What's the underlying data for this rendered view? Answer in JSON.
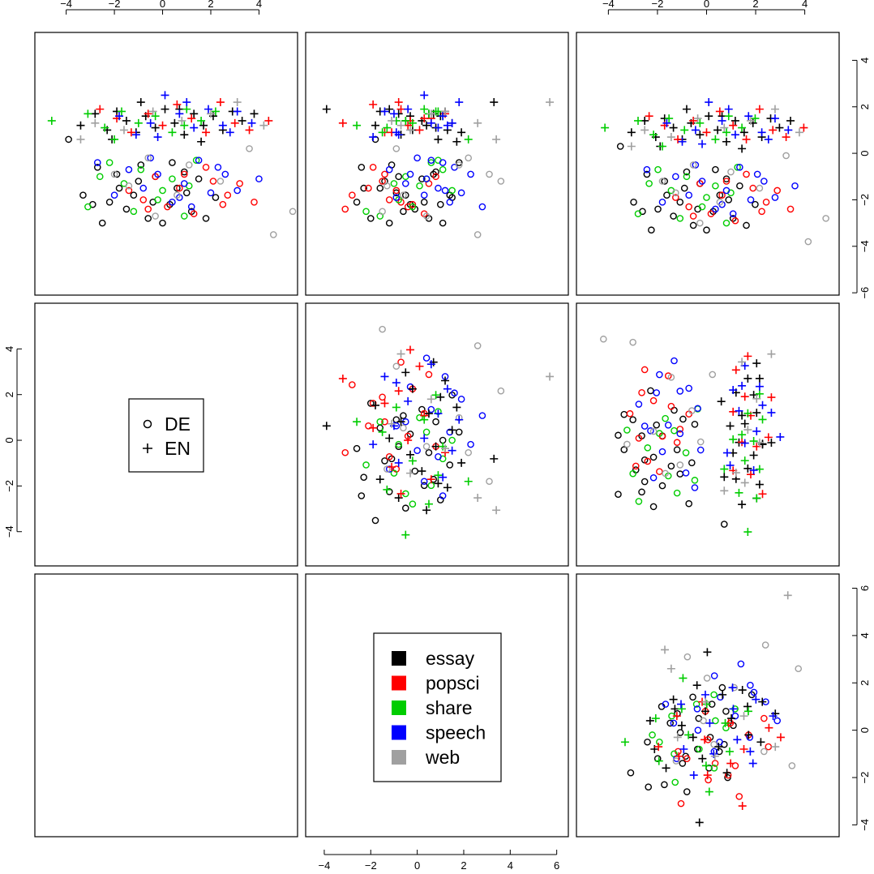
{
  "chart_data": {
    "type": "scatter",
    "layout": "pairs-matrix",
    "legend_shape": {
      "placement": "panel-2-1",
      "entries": [
        {
          "label": "DE",
          "symbol": "circle"
        },
        {
          "label": "EN",
          "symbol": "plus"
        }
      ]
    },
    "legend_color": {
      "placement": "panel-3-2",
      "entries": [
        {
          "label": "essay",
          "color": "#000000"
        },
        {
          "label": "popsci",
          "color": "#ff0000"
        },
        {
          "label": "share",
          "color": "#00cd00"
        },
        {
          "label": "speech",
          "color": "#0000ff"
        },
        {
          "label": "web",
          "color": "#a0a0a0"
        }
      ]
    },
    "axes": {
      "col1": {
        "ticks": [
          -4,
          -2,
          0,
          2,
          4
        ],
        "tick_labels": [
          "−4",
          "−2",
          "0",
          "2",
          "4"
        ],
        "range": [
          -5.3,
          5.6
        ]
      },
      "col2": {
        "ticks": [
          -4,
          -2,
          0,
          2,
          4,
          6
        ],
        "tick_labels": [
          "−4",
          "−2",
          "0",
          "2",
          "4",
          "6"
        ],
        "range": [
          -4.8,
          6.5
        ]
      },
      "col3": {
        "ticks": [
          -4,
          -2,
          0,
          2,
          4
        ],
        "tick_labels": [
          "−4",
          "−2",
          "0",
          "2",
          "4"
        ],
        "range": [
          -5.3,
          5.4
        ]
      },
      "row1": {
        "ticks": [
          -6,
          -4,
          -2,
          0,
          2,
          4
        ],
        "tick_labels": [
          "−6",
          "−4",
          "−2",
          "0",
          "2",
          "4"
        ],
        "range": [
          -6.1,
          5.2
        ]
      },
      "row2": {
        "ticks": [
          -4,
          -2,
          0,
          2,
          4
        ],
        "tick_labels": [
          "−4",
          "−2",
          "0",
          "2",
          "4"
        ],
        "range": [
          -5.5,
          6.0
        ]
      },
      "row3": {
        "ticks": [
          -4,
          -2,
          0,
          2,
          4,
          6
        ],
        "tick_labels": [
          "−4",
          "−2",
          "0",
          "2",
          "4",
          "6"
        ],
        "range": [
          -4.5,
          6.6
        ]
      }
    },
    "series": [
      {
        "name": "DE",
        "color_group": "essay",
        "points": [
          [
            -3.9,
            0.6,
            -1.8
          ],
          [
            -3.3,
            -1.8,
            -0.5
          ],
          [
            -2.9,
            -2.2,
            1.0
          ],
          [
            -2.5,
            -3.0,
            -1.2
          ],
          [
            -2.2,
            -2.1,
            0.3
          ],
          [
            -1.8,
            -1.5,
            -2.3
          ],
          [
            -1.5,
            -2.4,
            -0.1
          ],
          [
            -1.2,
            -1.8,
            1.4
          ],
          [
            -0.9,
            -0.5,
            -1.1
          ],
          [
            -0.6,
            -2.8,
            0.5
          ],
          [
            -0.3,
            -1.0,
            -0.8
          ],
          [
            0.0,
            -3.0,
            1.1
          ],
          [
            0.3,
            -2.2,
            -0.3
          ],
          [
            0.6,
            -1.5,
            -1.6
          ],
          [
            0.9,
            -0.8,
            0.8
          ],
          [
            1.2,
            -2.5,
            -0.6
          ],
          [
            1.5,
            -1.1,
            0.2
          ],
          [
            1.8,
            -2.8,
            -2.0
          ],
          [
            2.2,
            -1.9,
            1.5
          ],
          [
            -2.7,
            -0.6,
            -2.4
          ],
          [
            -1.9,
            -0.9,
            0.7
          ],
          [
            -1.0,
            -1.2,
            -1.4
          ],
          [
            0.4,
            -0.4,
            1.8
          ],
          [
            1.0,
            -1.7,
            -0.9
          ],
          [
            -0.4,
            -2.1,
            -2.6
          ]
        ]
      },
      {
        "name": "DE",
        "color_group": "popsci",
        "points": [
          [
            -1.4,
            -1.6,
            -0.9
          ],
          [
            -0.8,
            -2.0,
            -1.2
          ],
          [
            -0.3,
            -1.0,
            0.8
          ],
          [
            0.2,
            -2.3,
            -0.4
          ],
          [
            0.7,
            -1.5,
            -2.1
          ],
          [
            1.3,
            -2.6,
            0.3
          ],
          [
            2.1,
            -1.2,
            -1.5
          ],
          [
            2.7,
            -1.8,
            -2.8
          ],
          [
            3.2,
            -1.3,
            0.5
          ],
          [
            3.8,
            -2.1,
            -0.7
          ],
          [
            1.8,
            -0.6,
            -1.9
          ],
          [
            -0.6,
            -2.4,
            -3.1
          ],
          [
            0.9,
            -0.9,
            -1.4
          ],
          [
            2.5,
            -2.2,
            -0.2
          ]
        ]
      },
      {
        "name": "DE",
        "color_group": "share",
        "points": [
          [
            -3.1,
            -2.3,
            -0.2
          ],
          [
            -2.2,
            -0.4,
            0.6
          ],
          [
            -1.6,
            -1.3,
            -1.0
          ],
          [
            -0.9,
            -0.7,
            1.1
          ],
          [
            -0.2,
            -2.0,
            -0.8
          ],
          [
            0.4,
            -1.1,
            0.4
          ],
          [
            0.9,
            -2.7,
            -1.6
          ],
          [
            1.4,
            -0.3,
            0.9
          ],
          [
            -2.6,
            -1.0,
            -0.5
          ],
          [
            0.0,
            -1.6,
            1.5
          ],
          [
            -1.2,
            -2.5,
            -2.2
          ],
          [
            1.1,
            -1.4,
            0.1
          ]
        ]
      },
      {
        "name": "DE",
        "color_group": "speech",
        "points": [
          [
            -2.7,
            -0.4,
            1.1
          ],
          [
            -2.0,
            -1.8,
            0.3
          ],
          [
            -1.4,
            -0.7,
            -1.2
          ],
          [
            -0.8,
            -1.5,
            0.9
          ],
          [
            -0.2,
            -0.9,
            2.3
          ],
          [
            0.4,
            -2.1,
            1.4
          ],
          [
            0.9,
            -1.3,
            -0.5
          ],
          [
            1.5,
            -0.3,
            0.6
          ],
          [
            2.0,
            -1.7,
            1.9
          ],
          [
            2.6,
            -0.9,
            -0.3
          ],
          [
            3.1,
            -1.6,
            1.2
          ],
          [
            4.0,
            -1.1,
            0.4
          ],
          [
            1.2,
            -2.3,
            2.8
          ],
          [
            -0.5,
            -0.2,
            0.0
          ],
          [
            2.3,
            -0.6,
            1.6
          ],
          [
            0.7,
            -1.9,
            -0.9
          ]
        ]
      },
      {
        "name": "DE",
        "color_group": "web",
        "points": [
          [
            -2.0,
            -0.9,
            3.1
          ],
          [
            -1.4,
            -1.4,
            -1.3
          ],
          [
            -0.6,
            -0.2,
            2.2
          ],
          [
            0.6,
            -1.8,
            -0.6
          ],
          [
            1.1,
            -0.5,
            1.8
          ],
          [
            2.4,
            -1.2,
            3.6
          ],
          [
            3.6,
            0.2,
            -0.9
          ],
          [
            4.6,
            -3.5,
            2.6
          ],
          [
            5.4,
            -2.5,
            -1.5
          ],
          [
            -0.3,
            -2.7,
            0.4
          ]
        ]
      },
      {
        "name": "EN",
        "color_group": "essay",
        "points": [
          [
            -3.4,
            1.2,
            0.4
          ],
          [
            -2.8,
            1.7,
            -0.8
          ],
          [
            -2.3,
            1.0,
            1.3
          ],
          [
            -1.9,
            1.8,
            -1.6
          ],
          [
            -1.5,
            1.4,
            0.2
          ],
          [
            -1.1,
            0.9,
            1.9
          ],
          [
            -0.7,
            1.6,
            -0.3
          ],
          [
            -0.3,
            1.1,
            0.8
          ],
          [
            0.1,
            1.9,
            -1.2
          ],
          [
            0.5,
            1.3,
            1.5
          ],
          [
            0.9,
            0.8,
            -0.7
          ],
          [
            1.3,
            1.7,
            0.5
          ],
          [
            1.7,
            1.2,
            -1.8
          ],
          [
            2.1,
            1.6,
            1.0
          ],
          [
            2.5,
            1.0,
            -0.2
          ],
          [
            2.9,
            1.8,
            1.2
          ],
          [
            3.3,
            1.4,
            -0.5
          ],
          [
            -2.1,
            0.6,
            0.9
          ],
          [
            -0.9,
            2.2,
            3.3
          ],
          [
            0.7,
            1.9,
            -3.9
          ],
          [
            1.6,
            0.5,
            1.7
          ],
          [
            3.8,
            1.7,
            0.7
          ]
        ]
      },
      {
        "name": "EN",
        "color_group": "popsci",
        "points": [
          [
            -2.6,
            1.9,
            -0.7
          ],
          [
            -1.9,
            1.5,
            0.6
          ],
          [
            -1.3,
            0.9,
            -1.1
          ],
          [
            -0.6,
            1.7,
            1.2
          ],
          [
            0.0,
            1.2,
            -0.4
          ],
          [
            0.6,
            2.1,
            -1.9
          ],
          [
            1.2,
            1.5,
            0.3
          ],
          [
            1.8,
            0.9,
            -1.4
          ],
          [
            2.4,
            2.2,
            -0.8
          ],
          [
            3.0,
            1.3,
            -3.2
          ],
          [
            3.6,
            1.0,
            0.1
          ],
          [
            4.4,
            1.4,
            -0.3
          ]
        ]
      },
      {
        "name": "EN",
        "color_group": "share",
        "points": [
          [
            -4.6,
            1.4,
            -0.5
          ],
          [
            -3.1,
            1.7,
            0.5
          ],
          [
            -2.4,
            1.1,
            -1.3
          ],
          [
            -1.7,
            1.8,
            0.9
          ],
          [
            -1.0,
            1.3,
            -0.2
          ],
          [
            -0.3,
            1.6,
            1.1
          ],
          [
            0.4,
            0.9,
            -1.5
          ],
          [
            1.0,
            1.9,
            0.3
          ],
          [
            1.6,
            1.4,
            -0.9
          ],
          [
            2.2,
            1.8,
            0.8
          ],
          [
            0.9,
            1.2,
            -2.6
          ],
          [
            -2.0,
            0.6,
            2.2
          ]
        ]
      },
      {
        "name": "EN",
        "color_group": "speech",
        "points": [
          [
            -1.8,
            1.6,
            1.1
          ],
          [
            -1.1,
            0.8,
            -0.8
          ],
          [
            -0.5,
            1.3,
            1.5
          ],
          [
            0.1,
            2.5,
            0.3
          ],
          [
            0.7,
            1.7,
            -1.0
          ],
          [
            1.3,
            1.1,
            0.9
          ],
          [
            1.9,
            1.9,
            -0.4
          ],
          [
            2.5,
            1.2,
            1.3
          ],
          [
            3.1,
            1.8,
            -1.4
          ],
          [
            3.7,
            1.3,
            0.6
          ],
          [
            2.8,
            0.9,
            -0.9
          ],
          [
            1.0,
            2.2,
            1.8
          ],
          [
            -0.2,
            0.7,
            -1.9
          ]
        ]
      },
      {
        "name": "EN",
        "color_group": "web",
        "points": [
          [
            -2.8,
            1.3,
            2.6
          ],
          [
            -1.6,
            1.0,
            -0.3
          ],
          [
            -0.4,
            1.8,
            1.2
          ],
          [
            0.8,
            1.4,
            -1.1
          ],
          [
            2.0,
            1.7,
            0.6
          ],
          [
            3.1,
            2.2,
            5.7
          ],
          [
            4.2,
            1.2,
            -0.7
          ],
          [
            -3.4,
            0.6,
            3.4
          ]
        ]
      }
    ]
  }
}
